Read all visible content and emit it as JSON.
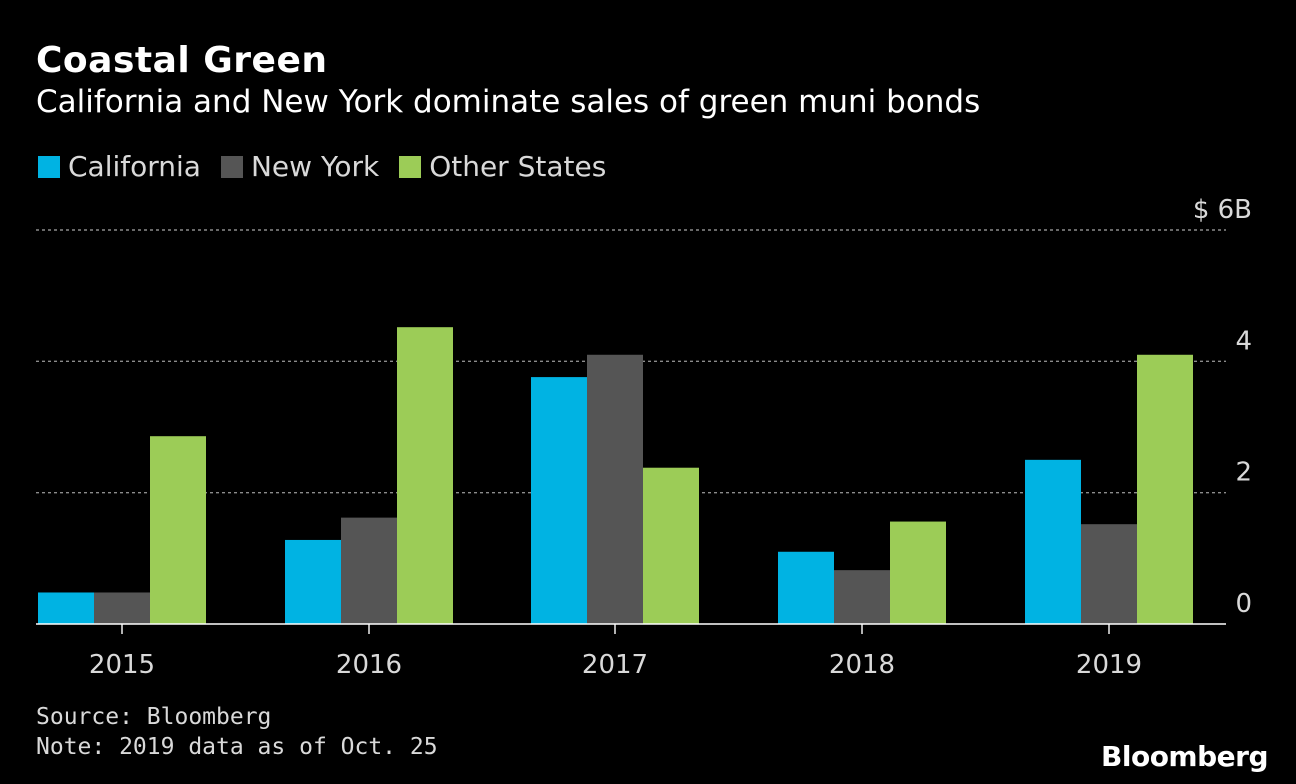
{
  "header": {
    "title": "Coastal Green",
    "subtitle": "California and New York dominate sales of green muni bonds"
  },
  "legend": {
    "items": [
      {
        "label": "California",
        "color": "#00b3e3"
      },
      {
        "label": "New York",
        "color": "#555555"
      },
      {
        "label": "Other States",
        "color": "#9ccc57"
      }
    ]
  },
  "chart_data": {
    "type": "bar",
    "categories": [
      "2015",
      "2016",
      "2017",
      "2018",
      "2019"
    ],
    "series": [
      {
        "name": "California",
        "color": "#00b3e3",
        "values": [
          0.48,
          1.28,
          3.76,
          1.1,
          2.5
        ]
      },
      {
        "name": "New York",
        "color": "#555555",
        "values": [
          0.48,
          1.62,
          4.1,
          0.82,
          1.52
        ]
      },
      {
        "name": "Other States",
        "color": "#9ccc57",
        "values": [
          2.86,
          4.52,
          2.38,
          1.56,
          4.1
        ]
      }
    ],
    "ylim": [
      0,
      6
    ],
    "yticks": [
      0,
      2,
      4,
      6
    ],
    "ytick_labels": [
      "0",
      "2",
      "4",
      "$ 6B"
    ],
    "grid": true,
    "legend_position": "top-left"
  },
  "footer": {
    "source": "Source: Bloomberg",
    "note": "Note: 2019 data as of Oct. 25",
    "brand": "Bloomberg"
  }
}
